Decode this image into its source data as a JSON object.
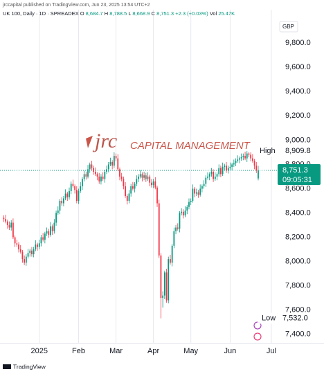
{
  "chart_data": {
    "type": "candlestick",
    "publisher": "jrccapital published on TradingView.com, Jun 23, 2025 13:54 UTC+2",
    "title": "UK 100, Daily · 1D · SPREADEX",
    "ohlc_header": [
      {
        "key": "O",
        "value": "8,684.7"
      },
      {
        "key": "H",
        "value": "8,788.5"
      },
      {
        "key": "L",
        "value": "8,668.9"
      },
      {
        "key": "C",
        "value": "8,751.3"
      }
    ],
    "change": "+2.3 (+0.03%)",
    "volume": {
      "key": "Vol",
      "value": "25.47K"
    },
    "currency": "GBP",
    "watermark": {
      "logo": "jrc",
      "text": "CAPITAL MANAGEMENT"
    },
    "brand": "TradingView",
    "up_color": "#089981",
    "down_color": "#f23645",
    "grid": "vertical",
    "x": [
      0,
      1,
      2,
      3,
      4,
      5,
      6,
      7,
      8,
      9,
      10,
      11,
      12,
      13,
      14,
      15,
      16,
      17,
      18,
      19,
      20,
      21,
      22,
      23,
      24,
      25,
      26,
      27,
      28,
      29,
      30,
      31,
      32,
      33,
      34,
      35,
      36,
      37,
      38,
      39,
      40,
      41,
      42,
      43,
      44,
      45,
      46,
      47,
      48,
      49,
      50,
      51,
      52,
      53,
      54,
      55,
      56,
      57,
      58,
      59,
      60,
      61,
      62,
      63,
      64,
      65,
      66,
      67,
      68,
      69,
      70,
      71,
      72,
      73,
      74,
      75,
      76,
      77,
      78,
      79,
      80,
      81,
      82,
      83,
      84,
      85,
      86,
      87,
      88,
      89,
      90,
      91,
      92,
      93,
      94,
      95,
      96,
      97,
      98,
      99,
      100,
      101,
      102,
      103,
      104,
      105,
      106,
      107,
      108,
      109,
      110,
      111,
      112,
      113,
      114,
      115,
      116,
      117,
      118,
      119,
      120,
      121,
      122,
      123,
      124,
      125,
      126,
      127,
      128,
      129,
      130,
      131,
      132,
      133,
      134,
      135,
      136
    ],
    "open": [
      8360,
      8350,
      8330,
      8300,
      8280,
      8320,
      8200,
      8150,
      8140,
      8100,
      8080,
      8020,
      7990,
      8040,
      8070,
      8090,
      8060,
      8100,
      8140,
      8120,
      8150,
      8200,
      8180,
      8230,
      8250,
      8220,
      8290,
      8250,
      8320,
      8400,
      8420,
      8500,
      8480,
      8520,
      8560,
      8530,
      8580,
      8640,
      8620,
      8590,
      8500,
      8580,
      8620,
      8680,
      8720,
      8700,
      8760,
      8800,
      8770,
      8740,
      8720,
      8700,
      8660,
      8700,
      8680,
      8740,
      8760,
      8800,
      8820,
      8790,
      8870,
      8850,
      8760,
      8700,
      8680,
      8620,
      8540,
      8500,
      8560,
      8620,
      8600,
      8640,
      8680,
      8700,
      8720,
      8690,
      8710,
      8680,
      8700,
      8650,
      8630,
      8660,
      8610,
      8480,
      8050,
      7700,
      7720,
      7910,
      7680,
      8020,
      7990,
      8130,
      8250,
      8280,
      8270,
      8400,
      8410,
      8380,
      8420,
      8450,
      8490,
      8500,
      8600,
      8560,
      8570,
      8550,
      8600,
      8620,
      8640,
      8690,
      8700,
      8720,
      8740,
      8680,
      8700,
      8720,
      8770,
      8720,
      8780,
      8790,
      8750,
      8770,
      8780,
      8800,
      8810,
      8830,
      8840,
      8850,
      8860,
      8870,
      8850,
      8890,
      8880,
      8850,
      8830,
      8790,
      8684.7
    ],
    "high": [
      8380,
      8385,
      8345,
      8330,
      8340,
      8355,
      8215,
      8180,
      8160,
      8135,
      8095,
      8050,
      8060,
      8105,
      8105,
      8120,
      8120,
      8175,
      8155,
      8180,
      8220,
      8235,
      8245,
      8280,
      8270,
      8325,
      8305,
      8350,
      8420,
      8455,
      8515,
      8530,
      8540,
      8595,
      8575,
      8610,
      8660,
      8675,
      8635,
      8620,
      8600,
      8655,
      8695,
      8750,
      8740,
      8795,
      8815,
      8830,
      8790,
      8775,
      8735,
      8730,
      8720,
      8735,
      8755,
      8790,
      8820,
      8855,
      8835,
      8900,
      8890,
      8885,
      8775,
      8730,
      8700,
      8655,
      8555,
      8590,
      8640,
      8655,
      8655,
      8710,
      8720,
      8755,
      8735,
      8740,
      8730,
      8735,
      8715,
      8680,
      8680,
      8695,
      8625,
      8510,
      8070,
      7755,
      7925,
      7940,
      8040,
      8055,
      8145,
      8280,
      8300,
      8315,
      8415,
      8440,
      8430,
      8455,
      8465,
      8520,
      8520,
      8635,
      8615,
      8600,
      8590,
      8635,
      8635,
      8670,
      8710,
      8735,
      8735,
      8770,
      8760,
      8735,
      8735,
      8800,
      8790,
      8815,
      8805,
      8820,
      8790,
      8815,
      8815,
      8840,
      8850,
      8875,
      8865,
      8890,
      8890,
      8905,
      8909.8,
      8900,
      8900,
      8885,
      8845,
      8820,
      8788.5
    ],
    "low": [
      8325,
      8315,
      8270,
      8260,
      8255,
      8185,
      8120,
      8120,
      8075,
      8065,
      7990,
      7970,
      7965,
      8025,
      8040,
      8040,
      8035,
      8085,
      8090,
      8100,
      8125,
      8165,
      8150,
      8210,
      8195,
      8205,
      8220,
      8230,
      8295,
      8385,
      8390,
      8460,
      8455,
      8505,
      8500,
      8510,
      8555,
      8605,
      8560,
      8480,
      8475,
      8565,
      8590,
      8660,
      8675,
      8685,
      8730,
      8750,
      8715,
      8705,
      8670,
      8640,
      8635,
      8665,
      8650,
      8720,
      8735,
      8785,
      8760,
      8770,
      8825,
      8745,
      8670,
      8660,
      8595,
      8525,
      8470,
      8480,
      8535,
      8585,
      8570,
      8620,
      8655,
      8685,
      8660,
      8670,
      8655,
      8665,
      8620,
      8610,
      8605,
      8595,
      8450,
      8030,
      7532.0,
      7620,
      7690,
      7660,
      7655,
      7975,
      7960,
      8110,
      8225,
      8255,
      8240,
      8380,
      8355,
      8365,
      8390,
      8430,
      8465,
      8485,
      8530,
      8540,
      8525,
      8535,
      8570,
      8600,
      8615,
      8675,
      8670,
      8700,
      8655,
      8665,
      8670,
      8700,
      8695,
      8705,
      8750,
      8730,
      8725,
      8755,
      8750,
      8780,
      8785,
      8815,
      8810,
      8830,
      8835,
      8835,
      8820,
      8860,
      8825,
      8815,
      8760,
      8729,
      8668.9
    ],
    "close": [
      8350,
      8330,
      8300,
      8280,
      8320,
      8200,
      8150,
      8140,
      8100,
      8080,
      8020,
      7990,
      8040,
      8070,
      8090,
      8060,
      8100,
      8140,
      8120,
      8150,
      8200,
      8180,
      8230,
      8250,
      8220,
      8290,
      8250,
      8320,
      8400,
      8420,
      8500,
      8480,
      8520,
      8560,
      8530,
      8580,
      8640,
      8620,
      8590,
      8500,
      8580,
      8620,
      8680,
      8720,
      8700,
      8760,
      8800,
      8770,
      8740,
      8720,
      8700,
      8660,
      8700,
      8680,
      8740,
      8760,
      8800,
      8820,
      8790,
      8870,
      8850,
      8760,
      8700,
      8680,
      8620,
      8540,
      8500,
      8560,
      8620,
      8600,
      8640,
      8680,
      8700,
      8720,
      8690,
      8710,
      8680,
      8700,
      8650,
      8630,
      8660,
      8610,
      8480,
      8050,
      7700,
      7720,
      7910,
      7680,
      8020,
      7990,
      8130,
      8250,
      8280,
      8270,
      8400,
      8410,
      8380,
      8420,
      8450,
      8490,
      8500,
      8600,
      8560,
      8570,
      8550,
      8600,
      8620,
      8640,
      8690,
      8700,
      8720,
      8740,
      8680,
      8700,
      8720,
      8770,
      8720,
      8780,
      8790,
      8750,
      8770,
      8780,
      8800,
      8810,
      8830,
      8840,
      8850,
      8860,
      8870,
      8850,
      8890,
      8880,
      8850,
      8830,
      8790,
      8749,
      8751.3
    ],
    "xlim": [
      -2,
      146
    ],
    "xticks": [
      {
        "value": 19,
        "label": "2025"
      },
      {
        "value": 40,
        "label": "Feb"
      },
      {
        "value": 60,
        "label": "Mar"
      },
      {
        "value": 80,
        "label": "Apr"
      },
      {
        "value": 100,
        "label": "May"
      },
      {
        "value": 121,
        "label": "Jun"
      },
      {
        "value": 143,
        "label": "Jul"
      }
    ],
    "ylim": [
      7330,
      10075
    ],
    "yticks": [
      {
        "value": 7400,
        "label": "7,400.0"
      },
      {
        "value": 7600,
        "label": "7,600.0"
      },
      {
        "value": 7800,
        "label": "7,800.0"
      },
      {
        "value": 8000,
        "label": "8,000.0"
      },
      {
        "value": 8200,
        "label": "8,200.0"
      },
      {
        "value": 8400,
        "label": "8,400.0"
      },
      {
        "value": 8600,
        "label": "8,600.0"
      },
      {
        "value": 8800,
        "label": "8,800.0"
      },
      {
        "value": 9000,
        "label": "9,000.0"
      },
      {
        "value": 9200,
        "label": "9,200.0"
      },
      {
        "value": 9400,
        "label": "9,400.0"
      },
      {
        "value": 9600,
        "label": "9,600.0"
      },
      {
        "value": 9800,
        "label": "9,800.0"
      }
    ],
    "high_marker": {
      "label": "High",
      "value": 8909.8,
      "value_label": "8,909.8"
    },
    "low_marker": {
      "label": "Low",
      "value": 7532.0,
      "value_label": "7,532.0"
    },
    "last_price": {
      "value": 8751.3,
      "label": "8,751.3",
      "countdown": "09:05:31"
    }
  }
}
